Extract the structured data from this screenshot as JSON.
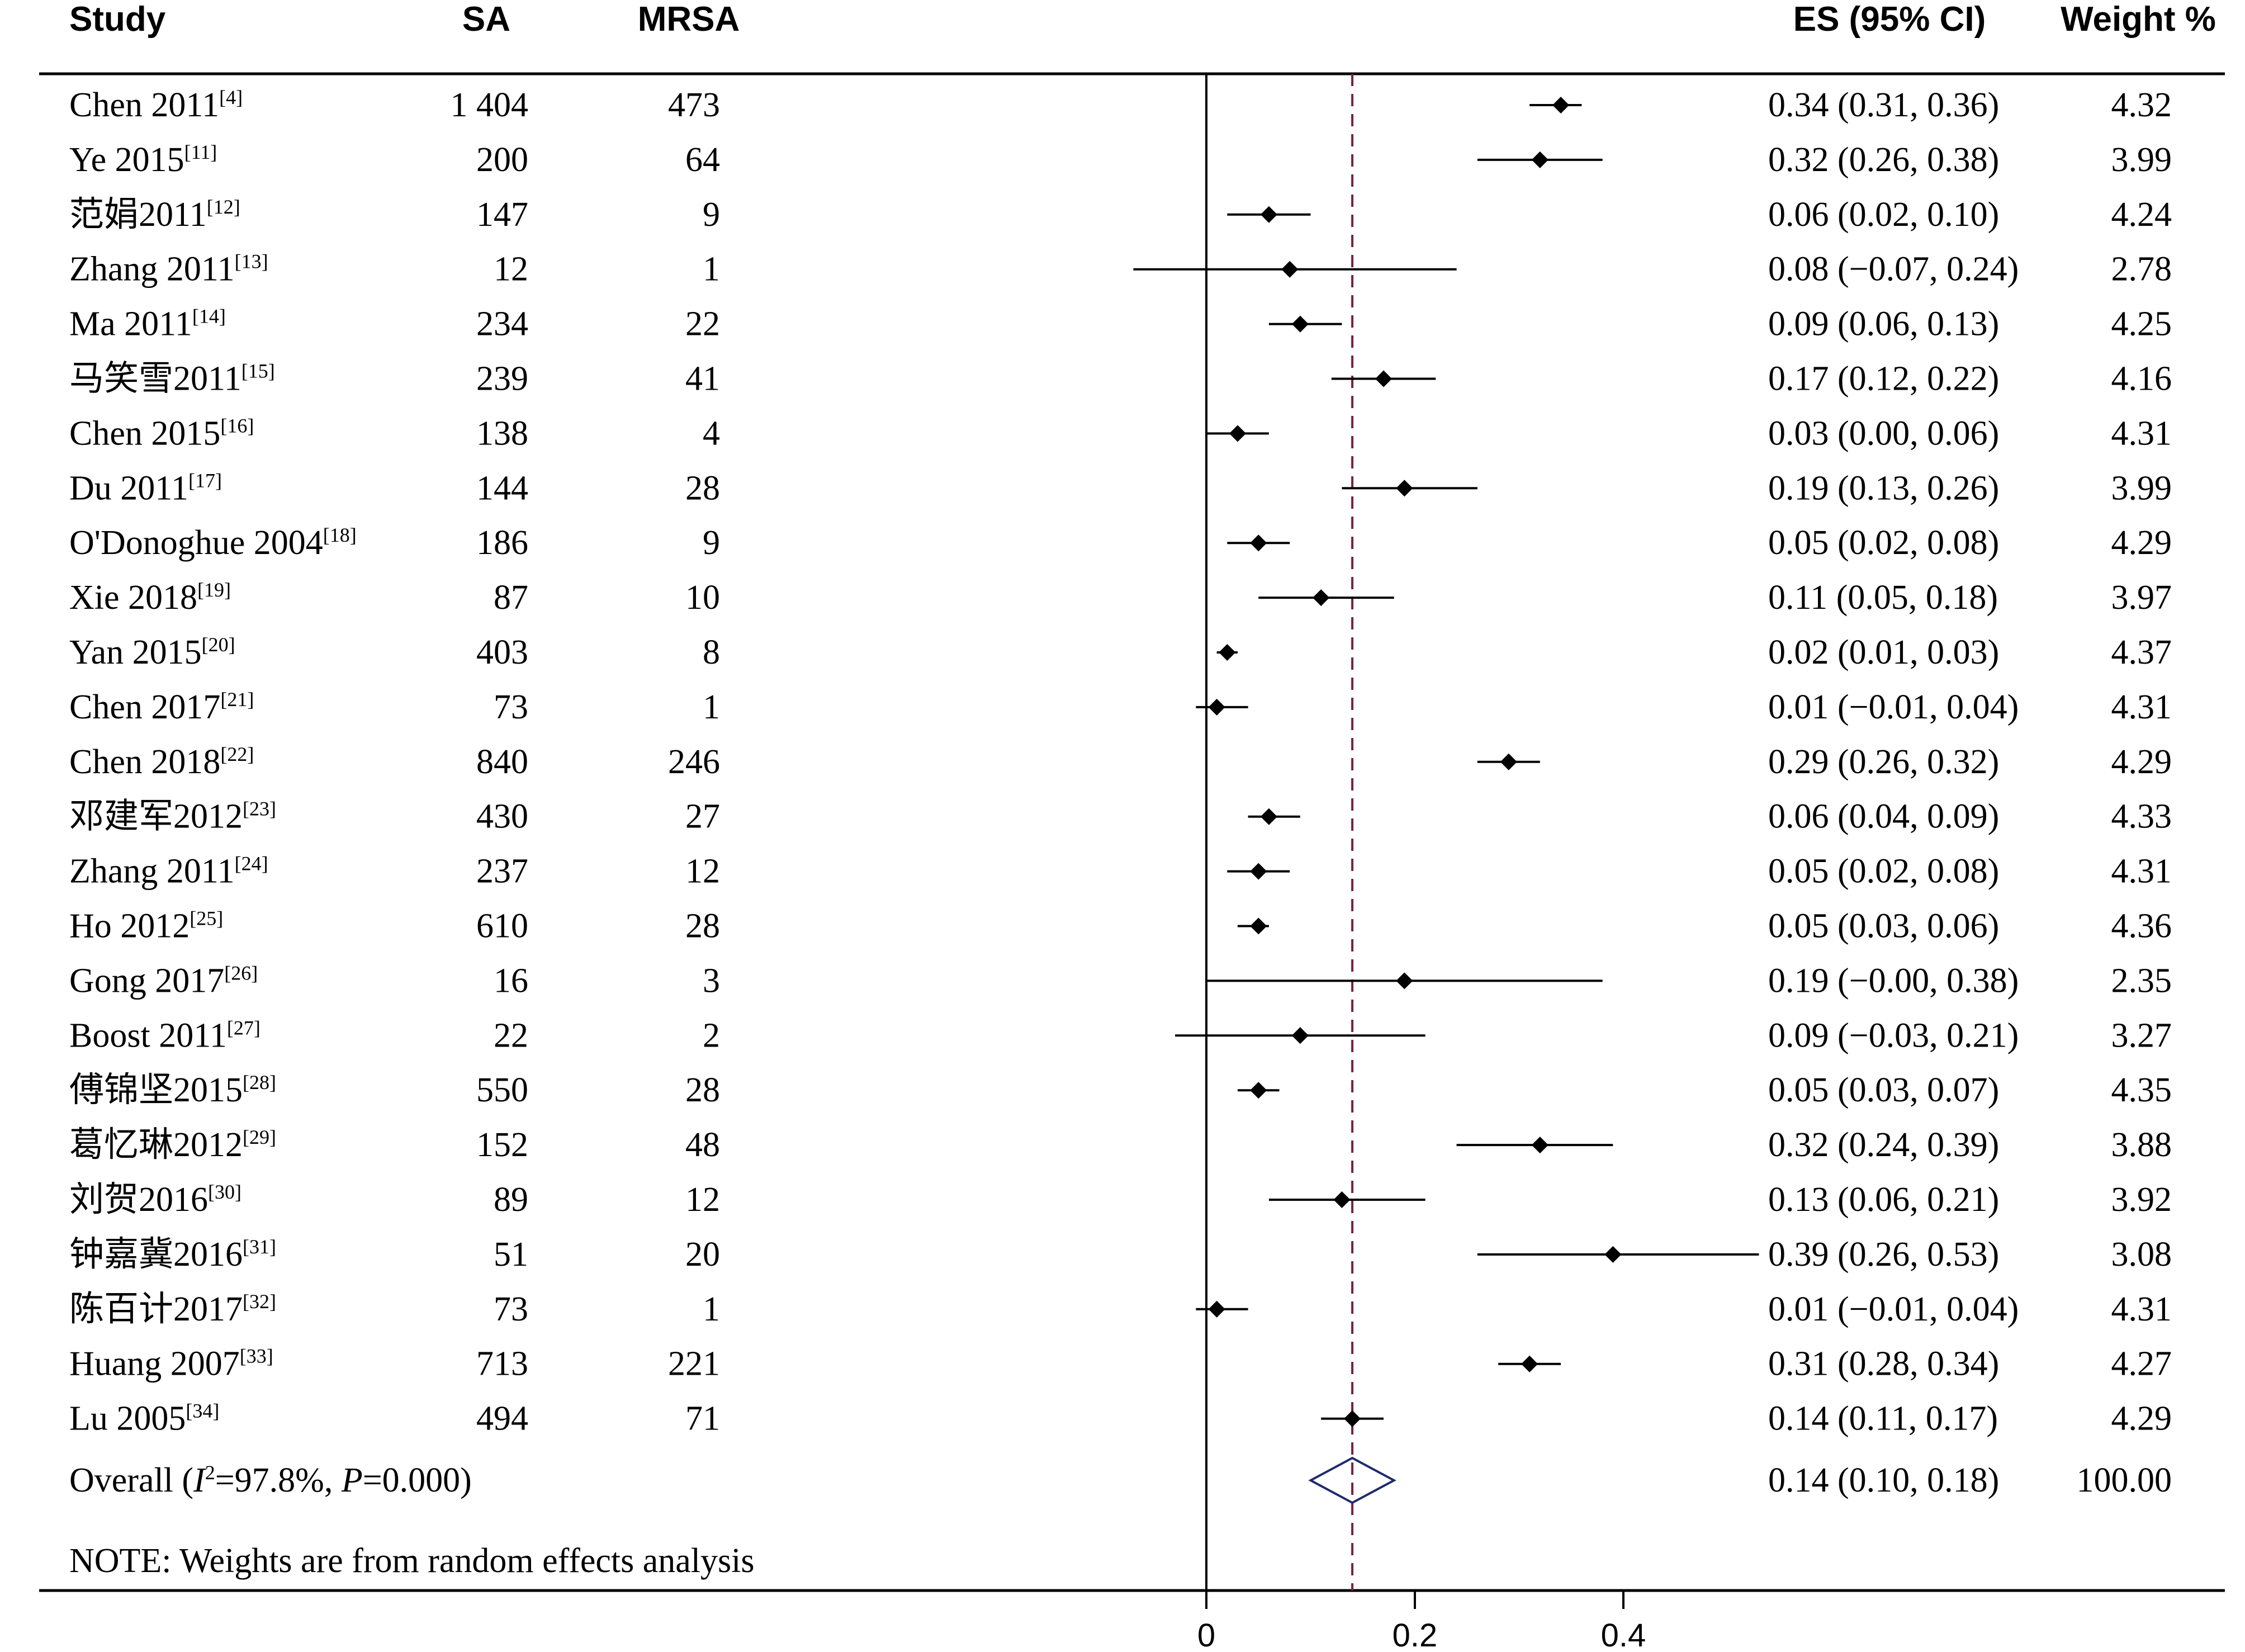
{
  "chart_data": {
    "type": "forest",
    "headers": {
      "study": "Study",
      "sa": "SA",
      "mrsa": "MRSA",
      "es": "ES (95% CI)",
      "weight": "Weight %"
    },
    "studies": [
      {
        "name": "Chen 2011",
        "ref": "[4]",
        "sa": "1 404",
        "mrsa": "473",
        "es": 0.34,
        "lo": 0.31,
        "hi": 0.36,
        "es_text": "0.34 (0.31, 0.36)",
        "weight": "4.32"
      },
      {
        "name": "Ye 2015",
        "ref": "[11]",
        "sa": "200",
        "mrsa": "64",
        "es": 0.32,
        "lo": 0.26,
        "hi": 0.38,
        "es_text": "0.32 (0.26, 0.38)",
        "weight": "3.99"
      },
      {
        "name": "范娟2011",
        "ref": "[12]",
        "sa": "147",
        "mrsa": "9",
        "es": 0.06,
        "lo": 0.02,
        "hi": 0.1,
        "es_text": "0.06 (0.02, 0.10)",
        "weight": "4.24"
      },
      {
        "name": "Zhang 2011",
        "ref": "[13]",
        "sa": "12",
        "mrsa": "1",
        "es": 0.08,
        "lo": -0.07,
        "hi": 0.24,
        "es_text": "0.08 (−0.07, 0.24)",
        "weight": "2.78"
      },
      {
        "name": "Ma 2011",
        "ref": "[14]",
        "sa": "234",
        "mrsa": "22",
        "es": 0.09,
        "lo": 0.06,
        "hi": 0.13,
        "es_text": "0.09 (0.06, 0.13)",
        "weight": "4.25"
      },
      {
        "name": "马笑雪2011",
        "ref": "[15]",
        "sa": "239",
        "mrsa": "41",
        "es": 0.17,
        "lo": 0.12,
        "hi": 0.22,
        "es_text": "0.17 (0.12, 0.22)",
        "weight": "4.16"
      },
      {
        "name": "Chen 2015",
        "ref": "[16]",
        "sa": "138",
        "mrsa": "4",
        "es": 0.03,
        "lo": 0.0,
        "hi": 0.06,
        "es_text": "0.03 (0.00, 0.06)",
        "weight": "4.31"
      },
      {
        "name": "Du 2011",
        "ref": "[17]",
        "sa": "144",
        "mrsa": "28",
        "es": 0.19,
        "lo": 0.13,
        "hi": 0.26,
        "es_text": "0.19 (0.13, 0.26)",
        "weight": "3.99"
      },
      {
        "name": "O'Donoghue 2004",
        "ref": "[18]",
        "sa": "186",
        "mrsa": "9",
        "es": 0.05,
        "lo": 0.02,
        "hi": 0.08,
        "es_text": "0.05 (0.02, 0.08)",
        "weight": "4.29"
      },
      {
        "name": "Xie 2018",
        "ref": "[19]",
        "sa": "87",
        "mrsa": "10",
        "es": 0.11,
        "lo": 0.05,
        "hi": 0.18,
        "es_text": "0.11 (0.05, 0.18)",
        "weight": "3.97"
      },
      {
        "name": "Yan 2015",
        "ref": "[20]",
        "sa": "403",
        "mrsa": "8",
        "es": 0.02,
        "lo": 0.01,
        "hi": 0.03,
        "es_text": "0.02 (0.01, 0.03)",
        "weight": "4.37"
      },
      {
        "name": "Chen 2017",
        "ref": "[21]",
        "sa": "73",
        "mrsa": "1",
        "es": 0.01,
        "lo": -0.01,
        "hi": 0.04,
        "es_text": "0.01 (−0.01, 0.04)",
        "weight": "4.31"
      },
      {
        "name": "Chen 2018",
        "ref": "[22]",
        "sa": "840",
        "mrsa": "246",
        "es": 0.29,
        "lo": 0.26,
        "hi": 0.32,
        "es_text": "0.29 (0.26, 0.32)",
        "weight": "4.29"
      },
      {
        "name": "邓建军2012",
        "ref": "[23]",
        "sa": "430",
        "mrsa": "27",
        "es": 0.06,
        "lo": 0.04,
        "hi": 0.09,
        "es_text": "0.06 (0.04, 0.09)",
        "weight": "4.33"
      },
      {
        "name": "Zhang 2011",
        "ref": "[24]",
        "sa": "237",
        "mrsa": "12",
        "es": 0.05,
        "lo": 0.02,
        "hi": 0.08,
        "es_text": "0.05 (0.02, 0.08)",
        "weight": "4.31"
      },
      {
        "name": "Ho 2012",
        "ref": "[25]",
        "sa": "610",
        "mrsa": "28",
        "es": 0.05,
        "lo": 0.03,
        "hi": 0.06,
        "es_text": "0.05 (0.03, 0.06)",
        "weight": "4.36"
      },
      {
        "name": "Gong 2017",
        "ref": "[26]",
        "sa": "16",
        "mrsa": "3",
        "es": 0.19,
        "lo": -0.0,
        "hi": 0.38,
        "es_text": "0.19 (−0.00, 0.38)",
        "weight": "2.35"
      },
      {
        "name": "Boost 2011",
        "ref": "[27]",
        "sa": "22",
        "mrsa": "2",
        "es": 0.09,
        "lo": -0.03,
        "hi": 0.21,
        "es_text": "0.09 (−0.03, 0.21)",
        "weight": "3.27"
      },
      {
        "name": "傅锦坚2015",
        "ref": "[28]",
        "sa": "550",
        "mrsa": "28",
        "es": 0.05,
        "lo": 0.03,
        "hi": 0.07,
        "es_text": "0.05 (0.03, 0.07)",
        "weight": "4.35"
      },
      {
        "name": "葛忆琳2012",
        "ref": "[29]",
        "sa": "152",
        "mrsa": "48",
        "es": 0.32,
        "lo": 0.24,
        "hi": 0.39,
        "es_text": "0.32 (0.24, 0.39)",
        "weight": "3.88"
      },
      {
        "name": "刘贺2016",
        "ref": "[30]",
        "sa": "89",
        "mrsa": "12",
        "es": 0.13,
        "lo": 0.06,
        "hi": 0.21,
        "es_text": "0.13 (0.06, 0.21)",
        "weight": "3.92"
      },
      {
        "name": "钟嘉冀2016",
        "ref": "[31]",
        "sa": "51",
        "mrsa": "20",
        "es": 0.39,
        "lo": 0.26,
        "hi": 0.53,
        "es_text": "0.39 (0.26, 0.53)",
        "weight": "3.08"
      },
      {
        "name": "陈百计2017",
        "ref": "[32]",
        "sa": "73",
        "mrsa": "1",
        "es": 0.01,
        "lo": -0.01,
        "hi": 0.04,
        "es_text": "0.01 (−0.01, 0.04)",
        "weight": "4.31"
      },
      {
        "name": "Huang 2007",
        "ref": "[33]",
        "sa": "713",
        "mrsa": "221",
        "es": 0.31,
        "lo": 0.28,
        "hi": 0.34,
        "es_text": "0.31 (0.28, 0.34)",
        "weight": "4.27"
      },
      {
        "name": "Lu 2005",
        "ref": "[34]",
        "sa": "494",
        "mrsa": "71",
        "es": 0.14,
        "lo": 0.11,
        "hi": 0.17,
        "es_text": "0.14 (0.11, 0.17)",
        "weight": "4.29"
      }
    ],
    "overall": {
      "label_prefix": "Overall  (",
      "i2_symbol": "I",
      "i2_sup": "2",
      "i2_value": "=97.8%, ",
      "p_symbol": "P",
      "p_value": "=0.000)",
      "es": 0.14,
      "lo": 0.1,
      "hi": 0.18,
      "es_text": "0.14 (0.10, 0.18)",
      "weight": "100.00"
    },
    "note": "NOTE: Weights are from random effects analysis",
    "x_ticks": [
      {
        "value": 0,
        "label": "0"
      },
      {
        "value": 0.2,
        "label": "0.2"
      },
      {
        "value": 0.4,
        "label": "0.4"
      }
    ],
    "null_line": 0,
    "overall_line": 0.14,
    "colors": {
      "marker": "#000000",
      "overall_line": "#7a1f3d",
      "diamond": "#1f2a6b"
    }
  }
}
